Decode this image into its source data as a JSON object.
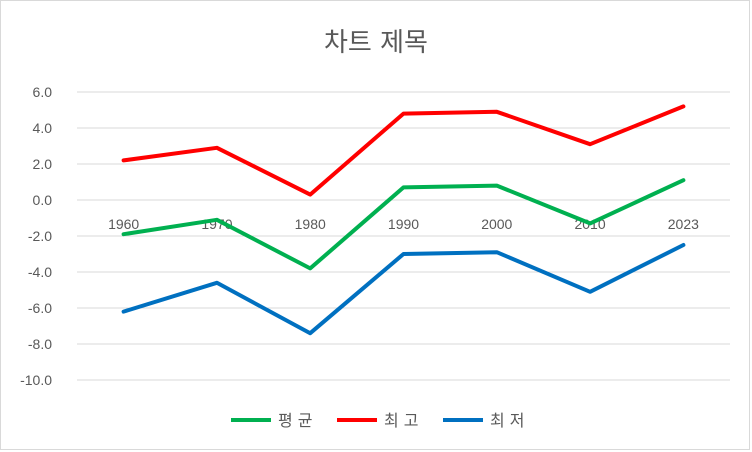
{
  "chart_data": {
    "type": "line",
    "title": "차트 제목",
    "categories": [
      "1960",
      "1970",
      "1980",
      "1990",
      "2000",
      "2010",
      "2023"
    ],
    "series": [
      {
        "name": "평 균",
        "color": "#00b050",
        "values": [
          -1.9,
          -1.1,
          -3.8,
          0.7,
          0.8,
          -1.3,
          1.1
        ]
      },
      {
        "name": "최 고",
        "color": "#ff0000",
        "values": [
          2.2,
          2.9,
          0.3,
          4.8,
          4.9,
          3.1,
          5.2
        ]
      },
      {
        "name": "최 저",
        "color": "#0070c0",
        "values": [
          -6.2,
          -4.6,
          -7.4,
          -3.0,
          -2.9,
          -5.1,
          -2.5
        ]
      }
    ],
    "yticks": [
      "6.0",
      "4.0",
      "2.0",
      "0.0",
      "-2.0",
      "-4.0",
      "-6.0",
      "-8.0",
      "-10.0"
    ],
    "ylim": [
      -10,
      6
    ],
    "grid": true,
    "legend": "bottom"
  }
}
